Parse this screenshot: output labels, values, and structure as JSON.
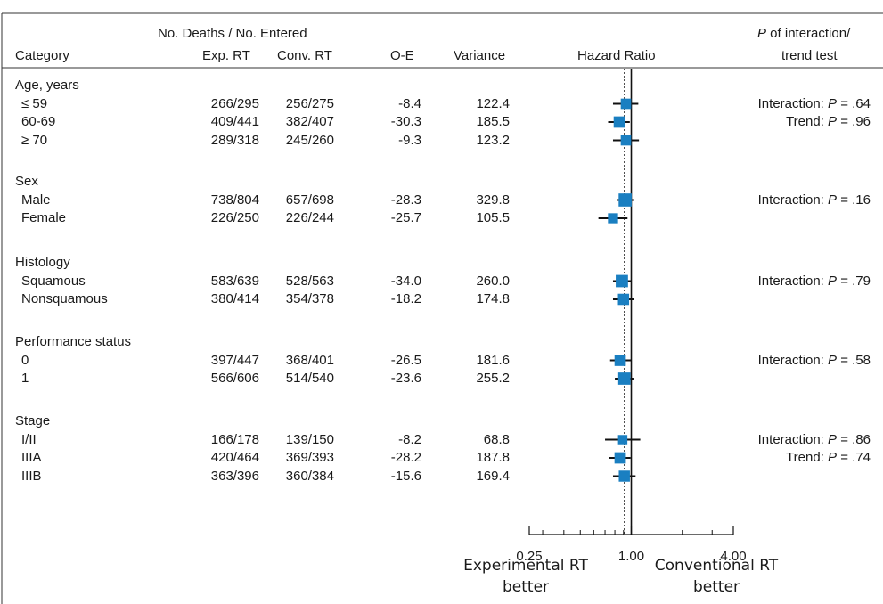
{
  "header": {
    "group_label": "No. Deaths / No. Entered",
    "category": "Category",
    "exp_rt": "Exp. RT",
    "conv_rt": "Conv. RT",
    "oe": "O-E",
    "variance": "Variance",
    "hazard_ratio": "Hazard Ratio",
    "p_line1_italic": "P",
    "p_line1_rest": " of interaction/",
    "p_line2": "trend test"
  },
  "groups": [
    {
      "label": "Age, years",
      "rows": [
        {
          "label": "≤ 59",
          "exp": "266/295",
          "conv": "256/275",
          "oe": "-8.4",
          "var": "122.4"
        },
        {
          "label": "60-69",
          "exp": "409/441",
          "conv": "382/407",
          "oe": "-30.3",
          "var": "185.5"
        },
        {
          "label": "≥ 70",
          "exp": "289/318",
          "conv": "245/260",
          "oe": "-9.3",
          "var": "123.2"
        }
      ],
      "tests": [
        {
          "label": "Interaction: ",
          "p": "P",
          "value": " = .64"
        },
        {
          "label": "Trend: ",
          "p": "P",
          "value": " = .96"
        }
      ]
    },
    {
      "label": "Sex",
      "rows": [
        {
          "label": "Male",
          "exp": "738/804",
          "conv": "657/698",
          "oe": "-28.3",
          "var": "329.8"
        },
        {
          "label": "Female",
          "exp": "226/250",
          "conv": "226/244",
          "oe": "-25.7",
          "var": "105.5"
        }
      ],
      "tests": [
        {
          "label": "Interaction: ",
          "p": "P",
          "value": " = .16"
        }
      ]
    },
    {
      "label": "Histology",
      "rows": [
        {
          "label": "Squamous",
          "exp": "583/639",
          "conv": "528/563",
          "oe": "-34.0",
          "var": "260.0"
        },
        {
          "label": "Nonsquamous",
          "exp": "380/414",
          "conv": "354/378",
          "oe": "-18.2",
          "var": "174.8"
        }
      ],
      "tests": [
        {
          "label": "Interaction: ",
          "p": "P",
          "value": " = .79"
        }
      ]
    },
    {
      "label": "Performance status",
      "rows": [
        {
          "label": "0",
          "exp": "397/447",
          "conv": "368/401",
          "oe": "-26.5",
          "var": "181.6"
        },
        {
          "label": "1",
          "exp": "566/606",
          "conv": "514/540",
          "oe": "-23.6",
          "var": "255.2"
        }
      ],
      "tests": [
        {
          "label": "Interaction: ",
          "p": "P",
          "value": " = .58"
        }
      ]
    },
    {
      "label": "Stage",
      "rows": [
        {
          "label": "I/II",
          "exp": "166/178",
          "conv": "139/150",
          "oe": "-8.2",
          "var": "68.8"
        },
        {
          "label": "IIIA",
          "exp": "420/464",
          "conv": "369/393",
          "oe": "-28.2",
          "var": "187.8"
        },
        {
          "label": "IIIB",
          "exp": "363/396",
          "conv": "360/384",
          "oe": "-15.6",
          "var": "169.4"
        }
      ],
      "tests": [
        {
          "label": "Interaction: ",
          "p": "P",
          "value": " = .86"
        },
        {
          "label": "Trend: ",
          "p": "P",
          "value": " = .74"
        }
      ]
    }
  ],
  "footer": {
    "left_line1": "Experimental RT",
    "left_line2": "better",
    "right_line1": "Conventional RT",
    "right_line2": "better"
  },
  "chart_data": {
    "type": "forest",
    "xlabel": "Hazard Ratio",
    "xscale": "log",
    "xlim": [
      0.25,
      4.0
    ],
    "xticks": [
      0.25,
      1.0,
      4.0
    ],
    "xtick_labels": [
      "0.25",
      "1.00",
      "4.00"
    ],
    "reference_line": 1.0,
    "overall_dotted_line": 0.91,
    "marker_color": "#1a7fc1",
    "points": [
      {
        "row": "≤ 59",
        "hr": 0.93,
        "lo": 0.78,
        "hi": 1.1
      },
      {
        "row": "60-69",
        "hr": 0.85,
        "lo": 0.73,
        "hi": 0.98
      },
      {
        "row": "≥ 70",
        "hr": 0.93,
        "lo": 0.78,
        "hi": 1.11
      },
      {
        "row": "Male",
        "hr": 0.92,
        "lo": 0.82,
        "hi": 1.03
      },
      {
        "row": "Female",
        "hr": 0.78,
        "lo": 0.64,
        "hi": 0.95
      },
      {
        "row": "Squamous",
        "hr": 0.88,
        "lo": 0.78,
        "hi": 1.0
      },
      {
        "row": "Nonsquamous",
        "hr": 0.9,
        "lo": 0.78,
        "hi": 1.04
      },
      {
        "row": "0",
        "hr": 0.86,
        "lo": 0.75,
        "hi": 1.0
      },
      {
        "row": "1",
        "hr": 0.91,
        "lo": 0.8,
        "hi": 1.03
      },
      {
        "row": "I/II",
        "hr": 0.89,
        "lo": 0.7,
        "hi": 1.13
      },
      {
        "row": "IIIA",
        "hr": 0.86,
        "lo": 0.74,
        "hi": 0.99
      },
      {
        "row": "IIIB",
        "hr": 0.91,
        "lo": 0.78,
        "hi": 1.06
      }
    ]
  }
}
